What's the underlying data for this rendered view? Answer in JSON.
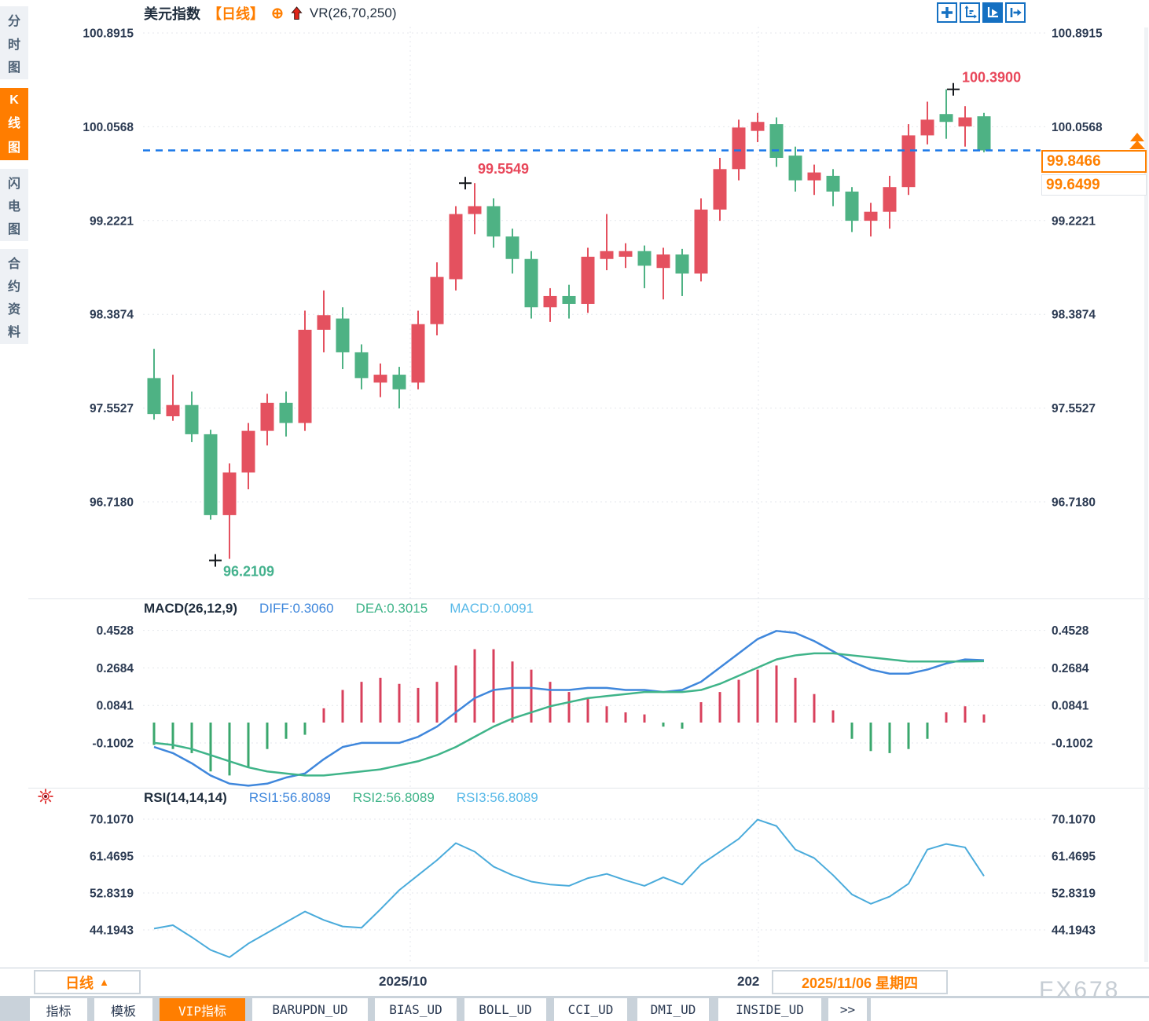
{
  "header": {
    "symbol": "美元指数",
    "period_tag": "【日线】",
    "plus_icon": "⊕",
    "indicator": "VR(26,70,250)"
  },
  "toolbar": {
    "icons": [
      {
        "name": "pan-crosshair-icon",
        "active": false
      },
      {
        "name": "axis-adjust-icon",
        "active": false
      },
      {
        "name": "auto-follow-icon",
        "active": true
      },
      {
        "name": "jump-to-latest-icon",
        "active": false
      }
    ]
  },
  "sidebar": {
    "tabs": [
      {
        "label": "分时图",
        "active": false
      },
      {
        "label": "K线图",
        "active": true
      },
      {
        "label": "闪电图",
        "active": false
      },
      {
        "label": "合约资料",
        "active": false
      }
    ]
  },
  "price_tags": {
    "current": "99.8466",
    "previous": "99.6499"
  },
  "bottom_bar": {
    "period": "日线",
    "period_arrow": "▲",
    "date_left": "2025/10",
    "date_mid": "202",
    "date_right": "2025/11/06 星期四"
  },
  "tabs": [
    {
      "label": "指标",
      "active": false
    },
    {
      "label": "模板",
      "active": false
    },
    {
      "label": "VIP指标",
      "active": true
    },
    {
      "label": "BARUPDN_UD",
      "active": false
    },
    {
      "label": "BIAS_UD",
      "active": false
    },
    {
      "label": "BOLL_UD",
      "active": false
    },
    {
      "label": "CCI_UD",
      "active": false
    },
    {
      "label": "DMI_UD",
      "active": false
    },
    {
      "label": "INSIDE_UD",
      "active": false
    },
    {
      "label": ">>",
      "active": false
    }
  ],
  "watermark": "FX678",
  "colors": {
    "up": "#e4515f",
    "down": "#4eb284",
    "accent_orange": "#ff7e00",
    "dashed_line": "#1a78e8",
    "diff_line": "#3f87dc",
    "dea_line": "#3fb489",
    "macd_label": "#58b9e8",
    "hist_up": "#d8405c",
    "hist_down": "#3aa76d",
    "rsi_line": "#4aabdb",
    "tick_text": "#2b3a52",
    "annotation_red": "#e8475a",
    "annotation_green": "#45b28e",
    "grid": "#e4e7ec",
    "cross": "#15181d"
  },
  "chart_data": [
    {
      "type": "candlestick",
      "title": "美元指数 日线",
      "ylim": [
        96.2,
        100.95
      ],
      "y_ticks": [
        100.8915,
        100.0568,
        99.2221,
        98.3874,
        97.5527,
        96.718
      ],
      "x_axis_labels": [
        "2025/10",
        "202",
        "2025/11/06 星期四"
      ],
      "last_price": 99.8466,
      "prev_ref_price": 99.6499,
      "candles": [
        [
          97.82,
          98.08,
          97.45,
          97.5
        ],
        [
          97.48,
          97.85,
          97.44,
          97.58
        ],
        [
          97.58,
          97.7,
          97.25,
          97.32
        ],
        [
          97.32,
          97.36,
          96.56,
          96.6
        ],
        [
          96.6,
          97.06,
          96.2109,
          96.98
        ],
        [
          96.98,
          97.42,
          96.83,
          97.35
        ],
        [
          97.35,
          97.68,
          97.22,
          97.6
        ],
        [
          97.6,
          97.7,
          97.3,
          97.42
        ],
        [
          97.42,
          98.42,
          97.35,
          98.25
        ],
        [
          98.25,
          98.6,
          98.05,
          98.38
        ],
        [
          98.35,
          98.45,
          97.9,
          98.05
        ],
        [
          98.05,
          98.12,
          97.72,
          97.82
        ],
        [
          97.78,
          97.95,
          97.65,
          97.85
        ],
        [
          97.85,
          97.92,
          97.55,
          97.72
        ],
        [
          97.78,
          98.42,
          97.72,
          98.3
        ],
        [
          98.3,
          98.85,
          98.2,
          98.72
        ],
        [
          98.7,
          99.35,
          98.6,
          99.28
        ],
        [
          99.28,
          99.5549,
          99.1,
          99.35
        ],
        [
          99.35,
          99.42,
          98.98,
          99.08
        ],
        [
          99.08,
          99.15,
          98.75,
          98.88
        ],
        [
          98.88,
          98.95,
          98.35,
          98.45
        ],
        [
          98.45,
          98.62,
          98.32,
          98.55
        ],
        [
          98.55,
          98.65,
          98.35,
          98.48
        ],
        [
          98.48,
          98.98,
          98.4,
          98.9
        ],
        [
          98.88,
          99.28,
          98.78,
          98.95
        ],
        [
          98.9,
          99.02,
          98.8,
          98.95
        ],
        [
          98.95,
          99.0,
          98.62,
          98.82
        ],
        [
          98.8,
          98.98,
          98.52,
          98.92
        ],
        [
          98.92,
          98.97,
          98.55,
          98.75
        ],
        [
          98.75,
          99.42,
          98.68,
          99.32
        ],
        [
          99.32,
          99.78,
          99.22,
          99.68
        ],
        [
          99.68,
          100.12,
          99.58,
          100.05
        ],
        [
          100.02,
          100.18,
          99.92,
          100.1
        ],
        [
          100.08,
          100.14,
          99.7,
          99.78
        ],
        [
          99.8,
          99.88,
          99.48,
          99.58
        ],
        [
          99.58,
          99.72,
          99.45,
          99.65
        ],
        [
          99.62,
          99.68,
          99.35,
          99.48
        ],
        [
          99.48,
          99.52,
          99.12,
          99.22
        ],
        [
          99.22,
          99.38,
          99.08,
          99.3
        ],
        [
          99.3,
          99.62,
          99.15,
          99.52
        ],
        [
          99.52,
          100.08,
          99.45,
          99.98
        ],
        [
          99.98,
          100.28,
          99.9,
          100.12
        ],
        [
          100.17,
          100.39,
          99.95,
          100.1
        ],
        [
          100.06,
          100.24,
          99.88,
          100.14
        ],
        [
          100.15,
          100.18,
          99.83,
          99.8466
        ]
      ],
      "annotations": [
        {
          "text": "100.3900",
          "index": 42,
          "at": "high",
          "color": "#e8475a"
        },
        {
          "text": "99.5549",
          "index": 17,
          "at": "high",
          "color": "#e8475a"
        },
        {
          "text": "96.2109",
          "index": 4,
          "at": "low",
          "color": "#45b28e"
        }
      ]
    },
    {
      "type": "bar+line",
      "title": "MACD(26,12,9)",
      "legend": [
        "DIFF:0.3060",
        "DEA:0.3015",
        "MACD:0.0091"
      ],
      "y_ticks": [
        0.4528,
        0.2684,
        0.0841,
        -0.1002
      ],
      "histogram": [
        -0.11,
        -0.13,
        -0.15,
        -0.24,
        -0.26,
        -0.22,
        -0.13,
        -0.08,
        -0.06,
        0.07,
        0.16,
        0.2,
        0.22,
        0.19,
        0.17,
        0.2,
        0.28,
        0.36,
        0.36,
        0.3,
        0.26,
        0.2,
        0.15,
        0.12,
        0.08,
        0.05,
        0.04,
        -0.02,
        -0.03,
        0.1,
        0.15,
        0.21,
        0.26,
        0.28,
        0.22,
        0.14,
        0.06,
        -0.08,
        -0.14,
        -0.15,
        -0.13,
        -0.08,
        0.05,
        0.08,
        0.04
      ],
      "diff": [
        -0.12,
        -0.15,
        -0.2,
        -0.26,
        -0.3,
        -0.31,
        -0.3,
        -0.27,
        -0.25,
        -0.18,
        -0.12,
        -0.1,
        -0.1,
        -0.1,
        -0.07,
        -0.02,
        0.05,
        0.12,
        0.16,
        0.17,
        0.17,
        0.16,
        0.16,
        0.17,
        0.17,
        0.16,
        0.16,
        0.15,
        0.16,
        0.2,
        0.27,
        0.34,
        0.41,
        0.45,
        0.44,
        0.4,
        0.35,
        0.3,
        0.26,
        0.24,
        0.24,
        0.26,
        0.29,
        0.31,
        0.306
      ],
      "dea": [
        -0.1,
        -0.11,
        -0.13,
        -0.16,
        -0.19,
        -0.22,
        -0.24,
        -0.25,
        -0.26,
        -0.26,
        -0.25,
        -0.24,
        -0.23,
        -0.21,
        -0.19,
        -0.16,
        -0.12,
        -0.07,
        -0.02,
        0.02,
        0.05,
        0.08,
        0.1,
        0.12,
        0.13,
        0.14,
        0.15,
        0.15,
        0.15,
        0.16,
        0.19,
        0.23,
        0.27,
        0.31,
        0.33,
        0.34,
        0.34,
        0.33,
        0.32,
        0.31,
        0.3,
        0.3,
        0.3,
        0.3,
        0.3015
      ]
    },
    {
      "type": "line",
      "title": "RSI(14,14,14)",
      "legend": [
        "RSI1:56.8089",
        "RSI2:56.8089",
        "RSI3:56.8089"
      ],
      "y_ticks": [
        70.107,
        61.4695,
        52.8319,
        44.1943
      ],
      "rsi": [
        44.5,
        45.3,
        42.5,
        39.5,
        37.8,
        41.0,
        43.5,
        46.0,
        48.5,
        46.5,
        45.0,
        44.7,
        49.0,
        53.5,
        57.0,
        60.5,
        64.5,
        62.5,
        59.0,
        57.0,
        55.5,
        54.8,
        54.5,
        56.3,
        57.3,
        55.8,
        54.5,
        56.5,
        54.8,
        59.5,
        62.5,
        65.5,
        70.0,
        68.5,
        63.0,
        61.0,
        57.0,
        52.5,
        50.3,
        52.0,
        55.0,
        63.0,
        64.3,
        63.5,
        56.8
      ]
    }
  ]
}
